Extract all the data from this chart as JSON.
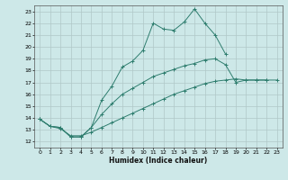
{
  "xlabel": "Humidex (Indice chaleur)",
  "bg_color": "#cde8e8",
  "grid_color": "#b0c8c8",
  "line_color": "#2e7d6e",
  "xlim": [
    -0.5,
    23.5
  ],
  "ylim": [
    11.5,
    23.5
  ],
  "xticks": [
    0,
    1,
    2,
    3,
    4,
    5,
    6,
    7,
    8,
    9,
    10,
    11,
    12,
    13,
    14,
    15,
    16,
    17,
    18,
    19,
    20,
    21,
    22,
    23
  ],
  "yticks": [
    12,
    13,
    14,
    15,
    16,
    17,
    18,
    19,
    20,
    21,
    22,
    23
  ],
  "line1_x": [
    0,
    1,
    2,
    3,
    4,
    5,
    6,
    7,
    8,
    9,
    10,
    11,
    12,
    13,
    14,
    15,
    16,
    17,
    18,
    19,
    20,
    21,
    22,
    23
  ],
  "line1_y": [
    13.9,
    13.3,
    13.2,
    12.4,
    12.4,
    13.2,
    15.5,
    16.7,
    18.3,
    18.8,
    19.7,
    22.0,
    21.5,
    21.4,
    22.1,
    23.2,
    22.0,
    21.0,
    19.4,
    null,
    null,
    null,
    null,
    null
  ],
  "line2_x": [
    0,
    1,
    2,
    3,
    4,
    5,
    6,
    7,
    8,
    9,
    10,
    11,
    12,
    13,
    14,
    15,
    16,
    17,
    18,
    19,
    20,
    21,
    22,
    23
  ],
  "line2_y": [
    13.9,
    13.3,
    13.2,
    12.4,
    12.4,
    13.2,
    14.3,
    15.2,
    16.0,
    16.5,
    17.0,
    17.5,
    17.8,
    18.1,
    18.4,
    18.6,
    18.9,
    19.0,
    18.5,
    17.0,
    17.2,
    17.2,
    17.2,
    null
  ],
  "line3_x": [
    0,
    1,
    2,
    3,
    4,
    5,
    6,
    7,
    8,
    9,
    10,
    11,
    12,
    13,
    14,
    15,
    16,
    17,
    18,
    19,
    20,
    21,
    22,
    23
  ],
  "line3_y": [
    13.9,
    13.3,
    13.1,
    12.5,
    12.5,
    12.8,
    13.2,
    13.6,
    14.0,
    14.4,
    14.8,
    15.2,
    15.6,
    16.0,
    16.3,
    16.6,
    16.9,
    17.1,
    17.2,
    17.3,
    17.2,
    17.2,
    17.2,
    17.2
  ]
}
